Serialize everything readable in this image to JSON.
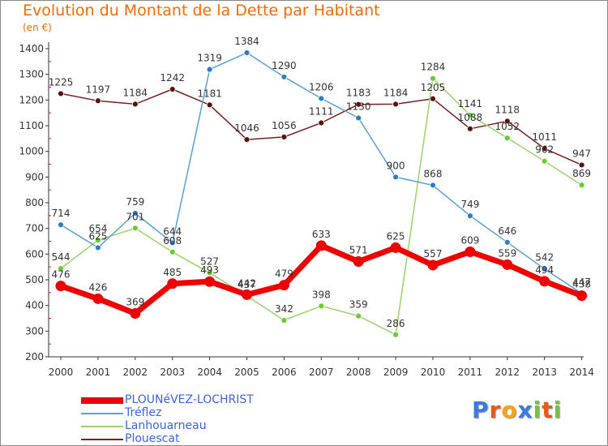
{
  "title": "Evolution du Montant de la Dette par Habitant",
  "subtitle": "(en €)",
  "brand": {
    "letters": [
      {
        "ch": "P",
        "color": "#3a7be0"
      },
      {
        "ch": "r",
        "color": "#e85a1c"
      },
      {
        "ch": "o",
        "color": "#f2a51a"
      },
      {
        "ch": "x",
        "color": "#3a7be0"
      },
      {
        "ch": "i",
        "color": "#7bc043"
      },
      {
        "ch": "t",
        "color": "#e85a1c"
      },
      {
        "ch": "i",
        "color": "#7bc043"
      }
    ]
  },
  "chart_data": {
    "type": "line",
    "x": [
      "2000",
      "2001",
      "2002",
      "2003",
      "2004",
      "2005",
      "2006",
      "2007",
      "2008",
      "2009",
      "2010",
      "2011",
      "2012",
      "2013",
      "2014"
    ],
    "ylim": [
      200,
      1400
    ],
    "yticks": [
      200,
      300,
      400,
      500,
      600,
      700,
      800,
      900,
      1000,
      1100,
      1200,
      1300,
      1400
    ],
    "grid": false,
    "legend_position": "bottom-left",
    "series": [
      {
        "name": "Plouescat",
        "color": "#7a1e1e",
        "marker": "#5a1010",
        "width": 1.5,
        "point": 3.5,
        "values": [
          1225,
          1197,
          1184,
          1242,
          1181,
          1046,
          1056,
          1111,
          1183,
          1184,
          1205,
          1088,
          1118,
          1011,
          947
        ],
        "labels": [
          "1225",
          "1197",
          "1184",
          "1242",
          "1181",
          "1046",
          "1056",
          "1111",
          "1183",
          "1184",
          "1205",
          "1088",
          "1118",
          "1011",
          "947"
        ]
      },
      {
        "name": "Lanhouarneau",
        "color": "#9bd46a",
        "marker": "#66cc33",
        "width": 1.5,
        "point": 3.5,
        "values": [
          544,
          654,
          701,
          608,
          527,
          437,
          342,
          398,
          359,
          286,
          1284,
          1141,
          1052,
          962,
          869
        ],
        "labels": [
          "544",
          "654",
          "701",
          "608",
          "527",
          "437",
          "342",
          "398",
          "359",
          "286",
          "1284",
          "1141",
          "1052",
          "962",
          "869"
        ]
      },
      {
        "name": "Tréflez",
        "color": "#5a9fd6",
        "marker": "#2e7cc4",
        "width": 1.5,
        "point": 3.5,
        "values": [
          714,
          625,
          759,
          644,
          1319,
          1384,
          1290,
          1206,
          1130,
          900,
          868,
          749,
          646,
          542,
          447
        ],
        "labels": [
          "714",
          "625",
          "759",
          "644",
          "1319",
          "1384",
          "1290",
          "1206",
          "1130",
          "900",
          "868",
          "749",
          "646",
          "542",
          "447"
        ]
      },
      {
        "name": "PLOUNéVEZ-LOCHRIST",
        "color": "#ee0000",
        "marker": "#ee0000",
        "width": 7,
        "point": 6.5,
        "values": [
          476,
          426,
          369,
          485,
          493,
          442,
          479,
          633,
          571,
          625,
          557,
          609,
          559,
          494,
          438
        ],
        "labels": [
          "476",
          "426",
          "369",
          "485",
          "493",
          "442",
          "479",
          "633",
          "571",
          "625",
          "557",
          "609",
          "559",
          "494",
          "438"
        ]
      }
    ],
    "legend": [
      {
        "name": "PLOUNéVEZ-LOCHRIST",
        "color": "#ee0000",
        "thickness": 8
      },
      {
        "name": "Tréflez",
        "color": "#5a9fd6",
        "thickness": 2
      },
      {
        "name": "Lanhouarneau",
        "color": "#9bd46a",
        "thickness": 2
      },
      {
        "name": "Plouescat",
        "color": "#7a1e1e",
        "thickness": 2
      }
    ]
  }
}
